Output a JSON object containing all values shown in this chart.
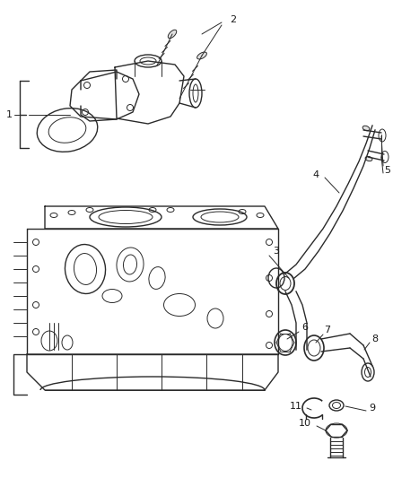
{
  "bg_color": "#ffffff",
  "line_color": "#2a2a2a",
  "label_color": "#1a1a1a",
  "fig_width": 4.38,
  "fig_height": 5.33,
  "dpi": 100
}
